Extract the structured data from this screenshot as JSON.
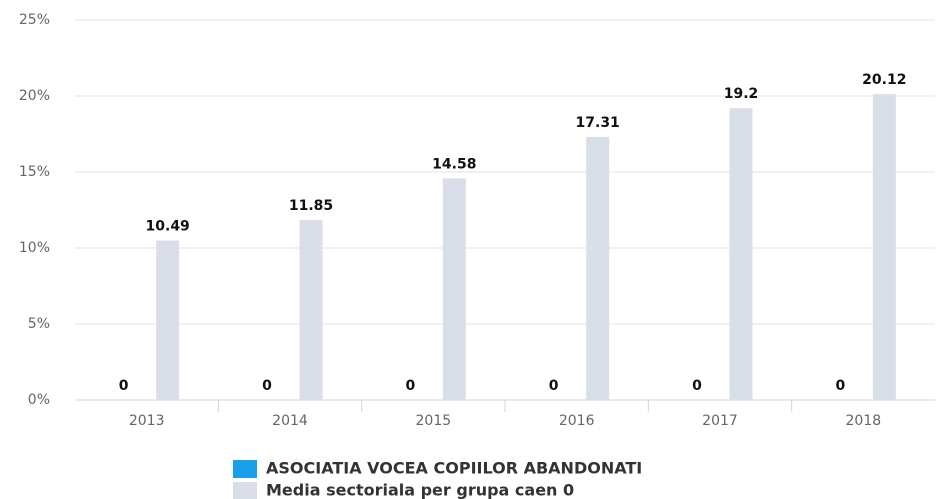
{
  "chart_data": {
    "type": "bar",
    "categories": [
      "2013",
      "2014",
      "2015",
      "2016",
      "2017",
      "2018"
    ],
    "series": [
      {
        "name": "ASOCIATIA VOCEA COPIILOR ABANDONATI",
        "color": "#1a9fe8",
        "values": [
          0,
          0,
          0,
          0,
          0,
          0
        ]
      },
      {
        "name": "Media sectoriala per grupa caen 0",
        "color": "#d9dee8",
        "values": [
          10.49,
          11.85,
          14.58,
          17.31,
          19.2,
          20.12
        ]
      }
    ],
    "ylim": [
      0,
      25
    ],
    "yticks": [
      {
        "value": 0,
        "label": "0%"
      },
      {
        "value": 5,
        "label": "5%"
      },
      {
        "value": 10,
        "label": "10%"
      },
      {
        "value": 15,
        "label": "15%"
      },
      {
        "value": 20,
        "label": "20%"
      },
      {
        "value": 25,
        "label": "25%"
      }
    ],
    "grid": true
  }
}
